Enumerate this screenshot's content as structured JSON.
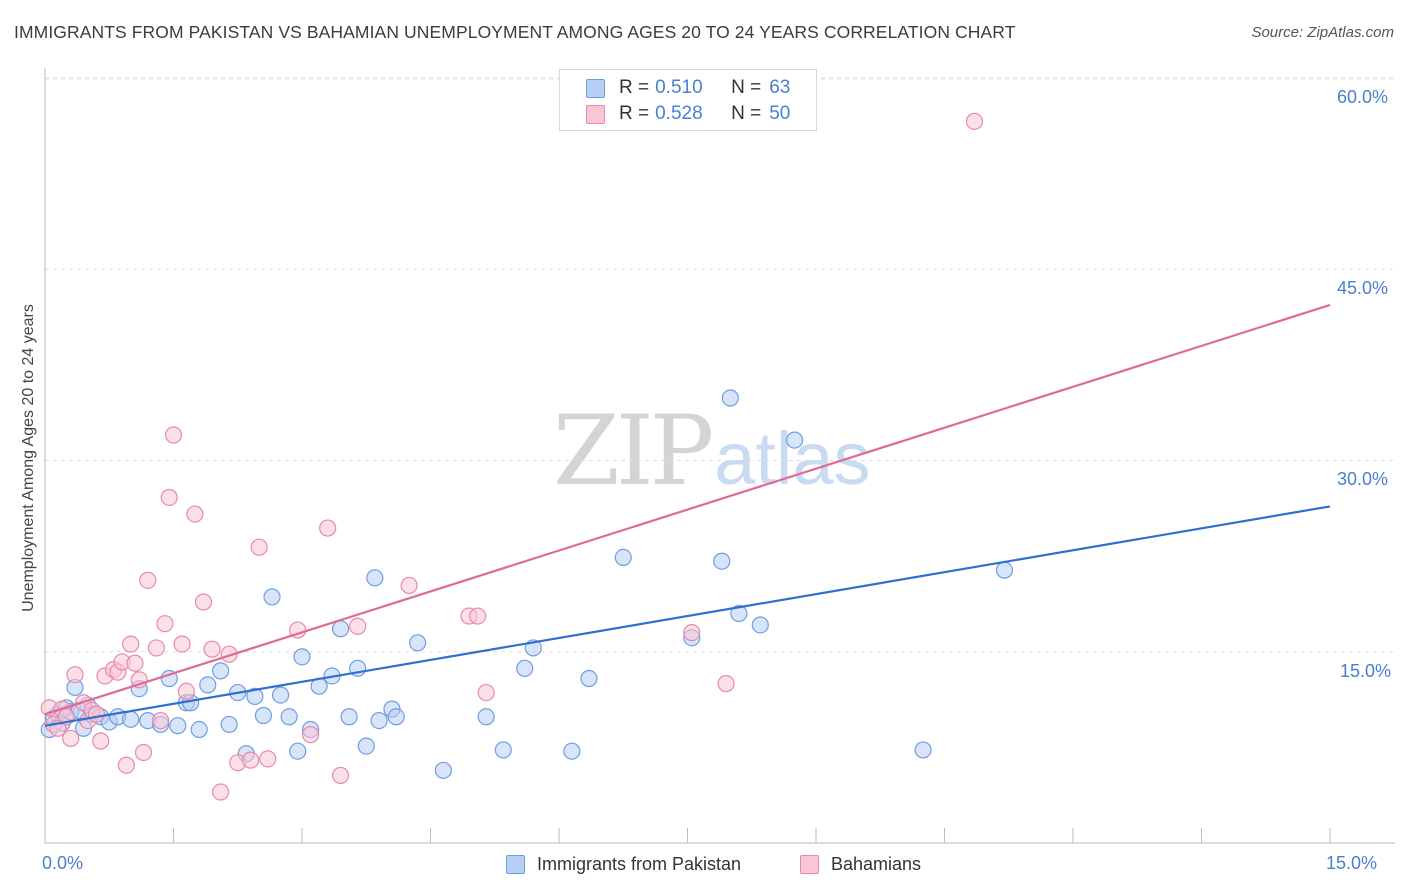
{
  "header": {
    "title": "IMMIGRANTS FROM PAKISTAN VS BAHAMIAN UNEMPLOYMENT AMONG AGES 20 TO 24 YEARS CORRELATION CHART",
    "source": "Source: ZipAtlas.com"
  },
  "watermark": {
    "zip": "ZIP",
    "atlas": "atlas"
  },
  "colors": {
    "blue_fill": "#b7cef5",
    "blue_stroke": "#6f9ee0",
    "blue_line": "#2f6fd0",
    "pink_fill": "#f9c6d6",
    "pink_stroke": "#e88aa9",
    "pink_line": "#e06a95",
    "accent_text": "#4a7fd0"
  },
  "legend": {
    "rows": [
      {
        "r_label": "R =",
        "r_value": "0.510",
        "n_label": "N =",
        "n_value": "63"
      },
      {
        "r_label": "R =",
        "r_value": "0.528",
        "n_label": "N =",
        "n_value": "50"
      }
    ],
    "bottom": [
      "Immigrants from Pakistan",
      "Bahamians"
    ]
  },
  "chart_data": {
    "type": "scatter",
    "title": "IMMIGRANTS FROM PAKISTAN VS BAHAMIAN UNEMPLOYMENT AMONG AGES 20 TO 24 YEARS CORRELATION CHART",
    "xlabel": "",
    "ylabel": "Unemployment Among Ages 20 to 24 years",
    "xlim": [
      0,
      15
    ],
    "ylim": [
      0,
      60
    ],
    "x_tick_labels": {
      "left": "0.0%",
      "right": "15.0%"
    },
    "y_ticks": [
      {
        "value": 15,
        "label": "15.0%"
      },
      {
        "value": 30,
        "label": "30.0%"
      },
      {
        "value": 45,
        "label": "45.0%"
      },
      {
        "value": 60,
        "label": "60.0%"
      }
    ],
    "grid": true,
    "series": [
      {
        "name": "Immigrants from Pakistan",
        "color": "#6f9ee0",
        "trendline": {
          "x": [
            0,
            15
          ],
          "y": [
            9.2,
            26.4
          ]
        },
        "points": [
          [
            0.05,
            8.9
          ],
          [
            0.1,
            9.8
          ],
          [
            0.15,
            10.1
          ],
          [
            0.2,
            9.4
          ],
          [
            0.25,
            10.6
          ],
          [
            0.3,
            10.3
          ],
          [
            0.35,
            12.2
          ],
          [
            0.4,
            10.4
          ],
          [
            0.5,
            10.8
          ],
          [
            0.55,
            10.1
          ],
          [
            0.65,
            9.9
          ],
          [
            0.75,
            9.5
          ],
          [
            0.85,
            9.9
          ],
          [
            1.1,
            12.1
          ],
          [
            1.2,
            9.6
          ],
          [
            1.35,
            9.3
          ],
          [
            1.45,
            12.9
          ],
          [
            1.55,
            9.2
          ],
          [
            1.65,
            11.0
          ],
          [
            1.8,
            8.9
          ],
          [
            1.9,
            12.4
          ],
          [
            2.05,
            13.5
          ],
          [
            2.15,
            9.3
          ],
          [
            2.25,
            11.8
          ],
          [
            2.35,
            7.0
          ],
          [
            2.45,
            11.5
          ],
          [
            2.55,
            10.0
          ],
          [
            2.65,
            19.3
          ],
          [
            2.75,
            11.6
          ],
          [
            2.85,
            9.9
          ],
          [
            2.95,
            7.2
          ],
          [
            3.0,
            14.6
          ],
          [
            3.1,
            8.9
          ],
          [
            3.2,
            12.3
          ],
          [
            3.35,
            13.1
          ],
          [
            3.45,
            16.8
          ],
          [
            3.55,
            9.9
          ],
          [
            3.65,
            13.7
          ],
          [
            3.75,
            7.6
          ],
          [
            3.85,
            20.8
          ],
          [
            3.9,
            9.6
          ],
          [
            4.05,
            10.5
          ],
          [
            4.1,
            9.9
          ],
          [
            4.35,
            15.7
          ],
          [
            4.65,
            5.7
          ],
          [
            5.15,
            9.9
          ],
          [
            5.35,
            7.3
          ],
          [
            5.6,
            13.7
          ],
          [
            5.7,
            15.3
          ],
          [
            6.15,
            7.2
          ],
          [
            6.35,
            12.9
          ],
          [
            6.75,
            22.4
          ],
          [
            7.55,
            16.1
          ],
          [
            7.9,
            22.1
          ],
          [
            8.0,
            34.9
          ],
          [
            8.1,
            18.0
          ],
          [
            8.35,
            17.1
          ],
          [
            8.75,
            31.6
          ],
          [
            11.2,
            21.4
          ],
          [
            10.25,
            7.3
          ],
          [
            0.45,
            9.0
          ],
          [
            1.0,
            9.7
          ],
          [
            1.7,
            11.0
          ]
        ]
      },
      {
        "name": "Bahamians",
        "color": "#e88aa9",
        "trendline": {
          "x": [
            0,
            15
          ],
          "y": [
            10.1,
            42.2
          ]
        },
        "points": [
          [
            0.05,
            10.6
          ],
          [
            0.1,
            9.3
          ],
          [
            0.15,
            9.0
          ],
          [
            0.2,
            10.5
          ],
          [
            0.3,
            8.2
          ],
          [
            0.35,
            13.2
          ],
          [
            0.45,
            11.0
          ],
          [
            0.5,
            9.6
          ],
          [
            0.55,
            10.4
          ],
          [
            0.65,
            8.0
          ],
          [
            0.7,
            13.1
          ],
          [
            0.8,
            13.6
          ],
          [
            0.85,
            13.4
          ],
          [
            0.9,
            14.2
          ],
          [
            0.95,
            6.1
          ],
          [
            1.0,
            15.6
          ],
          [
            1.05,
            14.1
          ],
          [
            1.1,
            12.8
          ],
          [
            1.15,
            7.1
          ],
          [
            1.2,
            20.6
          ],
          [
            1.3,
            15.3
          ],
          [
            1.35,
            9.6
          ],
          [
            1.4,
            17.2
          ],
          [
            1.45,
            27.1
          ],
          [
            1.5,
            32.0
          ],
          [
            1.6,
            15.6
          ],
          [
            1.65,
            11.9
          ],
          [
            1.75,
            25.8
          ],
          [
            1.85,
            18.9
          ],
          [
            1.95,
            15.2
          ],
          [
            2.05,
            4.0
          ],
          [
            2.15,
            14.8
          ],
          [
            2.25,
            6.3
          ],
          [
            2.4,
            6.5
          ],
          [
            2.5,
            23.2
          ],
          [
            2.6,
            6.6
          ],
          [
            2.95,
            16.7
          ],
          [
            3.1,
            8.5
          ],
          [
            3.3,
            24.7
          ],
          [
            3.45,
            5.3
          ],
          [
            3.65,
            17.0
          ],
          [
            4.25,
            20.2
          ],
          [
            4.95,
            17.8
          ],
          [
            5.05,
            17.8
          ],
          [
            5.15,
            11.8
          ],
          [
            7.55,
            16.5
          ],
          [
            7.95,
            12.5
          ],
          [
            10.85,
            56.6
          ],
          [
            0.25,
            9.9
          ],
          [
            0.6,
            10.1
          ]
        ]
      }
    ]
  }
}
